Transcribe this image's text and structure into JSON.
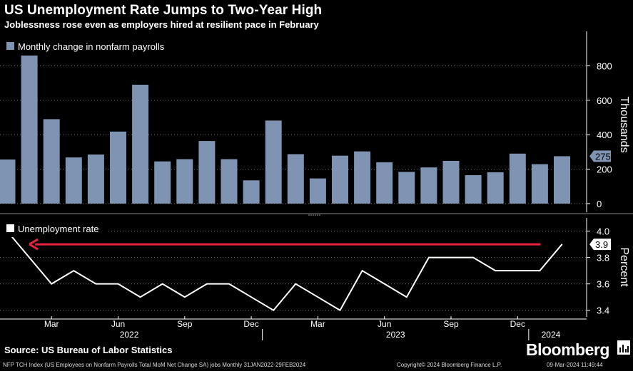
{
  "header": {
    "title": "US Unemployment Rate Jumps to Two-Year High",
    "subtitle": "Joblessness rose even as employers hired at resilient pace in February"
  },
  "footer": {
    "source": "Source: US Bureau of Labor Statistics",
    "brand": "Bloomberg",
    "ticker_note": "NFP TCH Index (US Employees on Nonfarm Payrolls Total MoM Net Change SA) jobs  Monthly 31JAN2022-29FEB2024",
    "copyright": "Copyright© 2024 Bloomberg Finance L.P.",
    "timestamp": "09-Mar-2024 11:49:44"
  },
  "colors": {
    "background": "#000000",
    "bar": "#7f93b2",
    "line": "#ffffff",
    "arrow": "#e8233f",
    "grid": "#6f6f6f",
    "brand_icon": "bloomberg-terminal-icon"
  },
  "chart_data": [
    {
      "type": "bar",
      "legend": "Monthly change in nonfarm payrolls",
      "legend_position": "top-left",
      "ylabel": "Thousands",
      "ylim": [
        -50,
        1000
      ],
      "yticks": [
        0,
        200,
        400,
        600,
        800
      ],
      "grid": true,
      "last_value_label": "275",
      "x": [
        "2022-01",
        "2022-02",
        "2022-03",
        "2022-04",
        "2022-05",
        "2022-06",
        "2022-07",
        "2022-08",
        "2022-09",
        "2022-10",
        "2022-11",
        "2022-12",
        "2023-01",
        "2023-02",
        "2023-03",
        "2023-04",
        "2023-05",
        "2023-06",
        "2023-07",
        "2023-08",
        "2023-09",
        "2023-10",
        "2023-11",
        "2023-12",
        "2024-01",
        "2024-02"
      ],
      "values": [
        256,
        865,
        490,
        268,
        285,
        418,
        690,
        245,
        258,
        363,
        258,
        135,
        482,
        287,
        146,
        278,
        303,
        240,
        184,
        210,
        248,
        165,
        182,
        290,
        229,
        275
      ]
    },
    {
      "type": "line",
      "legend": "Unemployment rate",
      "legend_position": "top-left",
      "ylabel": "Percent",
      "ylim": [
        3.35,
        4.1
      ],
      "yticks": [
        3.4,
        3.6,
        3.8,
        4.0
      ],
      "grid": true,
      "last_value_label": "3.9",
      "x": [
        "2022-01",
        "2022-02",
        "2022-03",
        "2022-04",
        "2022-05",
        "2022-06",
        "2022-07",
        "2022-08",
        "2022-09",
        "2022-10",
        "2022-11",
        "2022-12",
        "2023-01",
        "2023-02",
        "2023-03",
        "2023-04",
        "2023-05",
        "2023-06",
        "2023-07",
        "2023-08",
        "2023-09",
        "2023-10",
        "2023-11",
        "2023-12",
        "2024-01",
        "2024-02"
      ],
      "values": [
        4.0,
        3.8,
        3.6,
        3.7,
        3.6,
        3.6,
        3.5,
        3.6,
        3.5,
        3.6,
        3.6,
        3.5,
        3.4,
        3.6,
        3.5,
        3.4,
        3.7,
        3.6,
        3.5,
        3.8,
        3.8,
        3.8,
        3.7,
        3.7,
        3.7,
        3.9
      ],
      "annotation": {
        "type": "arrow",
        "from": "2024-02",
        "to": "2022-02",
        "level": 3.9
      }
    }
  ],
  "x_axis": {
    "month_labels": [
      {
        "label": "Mar",
        "index": 2
      },
      {
        "label": "Jun",
        "index": 5
      },
      {
        "label": "Sep",
        "index": 8
      },
      {
        "label": "Dec",
        "index": 11
      },
      {
        "label": "Mar",
        "index": 14
      },
      {
        "label": "Jun",
        "index": 17
      },
      {
        "label": "Sep",
        "index": 20
      },
      {
        "label": "Dec",
        "index": 23
      }
    ],
    "year_labels": [
      {
        "label": "2022",
        "index": 5.5
      },
      {
        "label": "2023",
        "index": 17.5
      },
      {
        "label": "2024",
        "index": 24.5
      }
    ],
    "year_dividers": [
      11.5,
      23.5
    ]
  }
}
